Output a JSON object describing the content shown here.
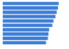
{
  "chart_data": {
    "type": "bar",
    "orientation": "horizontal",
    "categories": [
      null,
      null,
      null,
      null,
      null,
      null,
      null,
      null,
      null,
      null
    ],
    "values": [
      88,
      87,
      85,
      83,
      80,
      78,
      73,
      72,
      71,
      68
    ],
    "color": "#3a7bd5",
    "xlim": [
      0,
      100
    ],
    "grid": false,
    "tick_labels": false
  }
}
